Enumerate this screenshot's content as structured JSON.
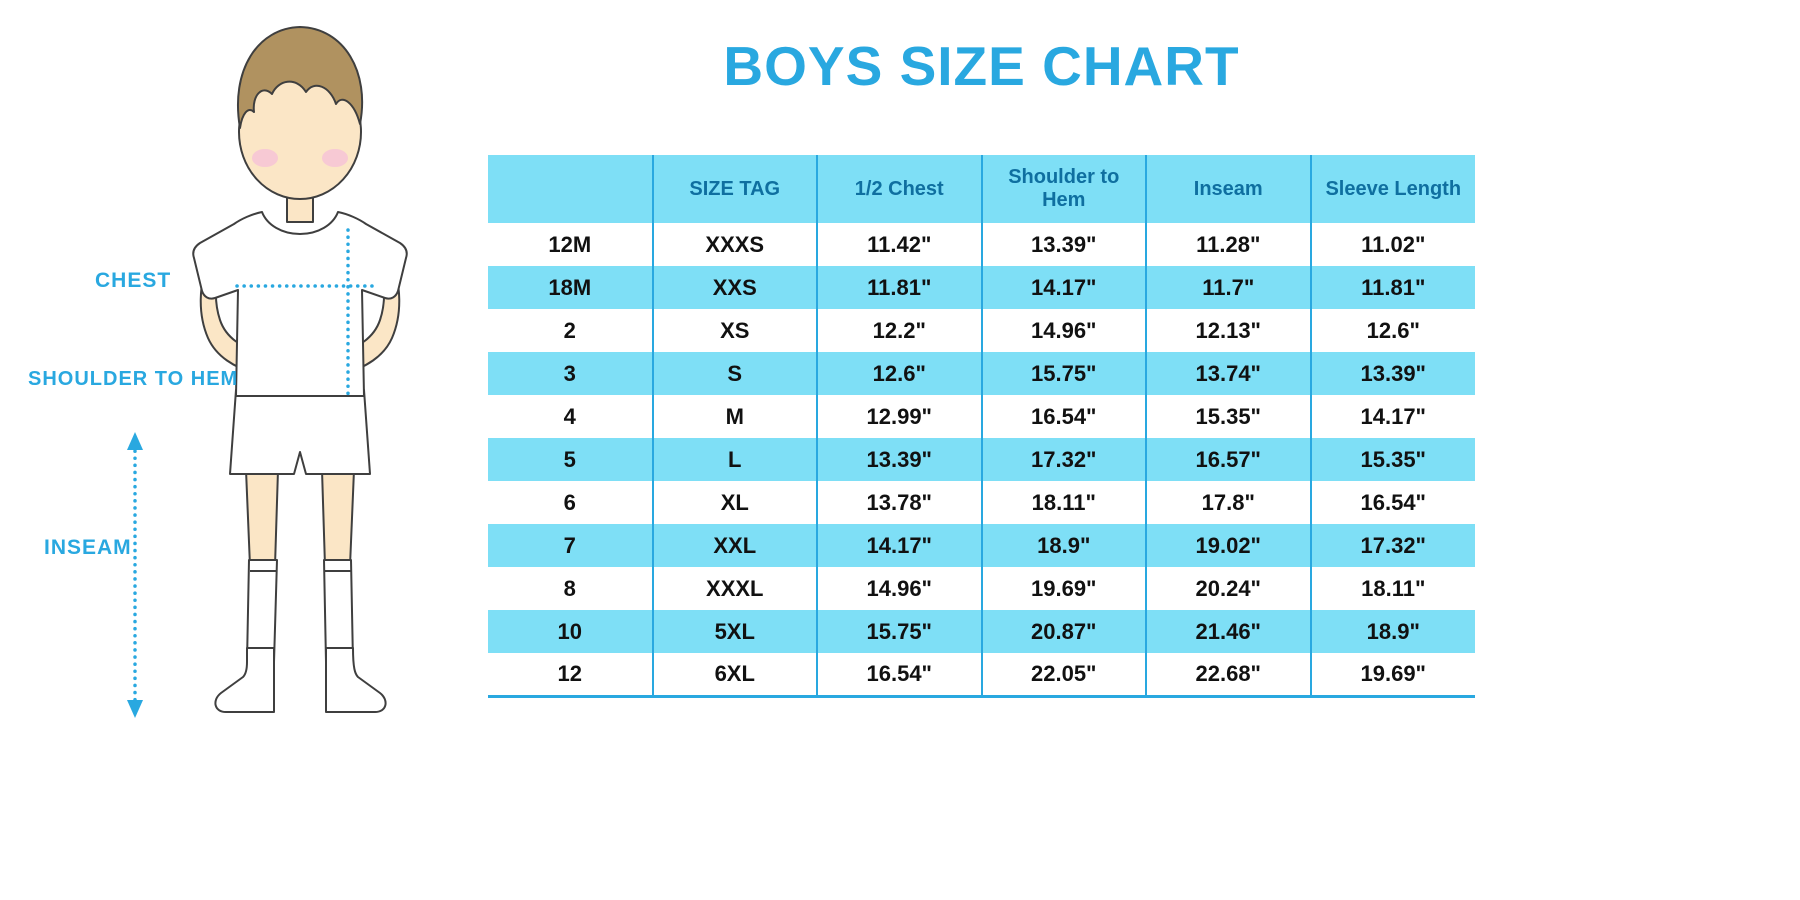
{
  "title": "BOYS SIZE CHART",
  "figure": {
    "labels": {
      "chest": "CHEST",
      "shoulder_to_hem": "SHOULDER TO HEM",
      "inseam": "INSEAM"
    }
  },
  "colors": {
    "accent": "#29A8E0",
    "band": "#7EDFF6",
    "header_text": "#0F6FA0",
    "body_text": "#111111",
    "skin": "#FBE6C6",
    "hair": "#B09260",
    "blush": "#F6C3D6",
    "outline": "#3F3F3F"
  },
  "chart_data": {
    "type": "table",
    "title": "BOYS SIZE CHART",
    "columns": [
      "",
      "SIZE TAG",
      "1/2 Chest",
      "Shoulder to Hem",
      "Inseam",
      "Sleeve Length"
    ],
    "rows": [
      [
        "12M",
        "XXXS",
        "11.42\"",
        "13.39\"",
        "11.28\"",
        "11.02\""
      ],
      [
        "18M",
        "XXS",
        "11.81\"",
        "14.17\"",
        "11.7\"",
        "11.81\""
      ],
      [
        "2",
        "XS",
        "12.2\"",
        "14.96\"",
        "12.13\"",
        "12.6\""
      ],
      [
        "3",
        "S",
        "12.6\"",
        "15.75\"",
        "13.74\"",
        "13.39\""
      ],
      [
        "4",
        "M",
        "12.99\"",
        "16.54\"",
        "15.35\"",
        "14.17\""
      ],
      [
        "5",
        "L",
        "13.39\"",
        "17.32\"",
        "16.57\"",
        "15.35\""
      ],
      [
        "6",
        "XL",
        "13.78\"",
        "18.11\"",
        "17.8\"",
        "16.54\""
      ],
      [
        "7",
        "XXL",
        "14.17\"",
        "18.9\"",
        "19.02\"",
        "17.32\""
      ],
      [
        "8",
        "XXXL",
        "14.96\"",
        "19.69\"",
        "20.24\"",
        "18.11\""
      ],
      [
        "10",
        "5XL",
        "15.75\"",
        "20.87\"",
        "21.46\"",
        "18.9\""
      ],
      [
        "12",
        "6XL",
        "16.54\"",
        "22.05\"",
        "22.68\"",
        "19.69\""
      ]
    ]
  }
}
